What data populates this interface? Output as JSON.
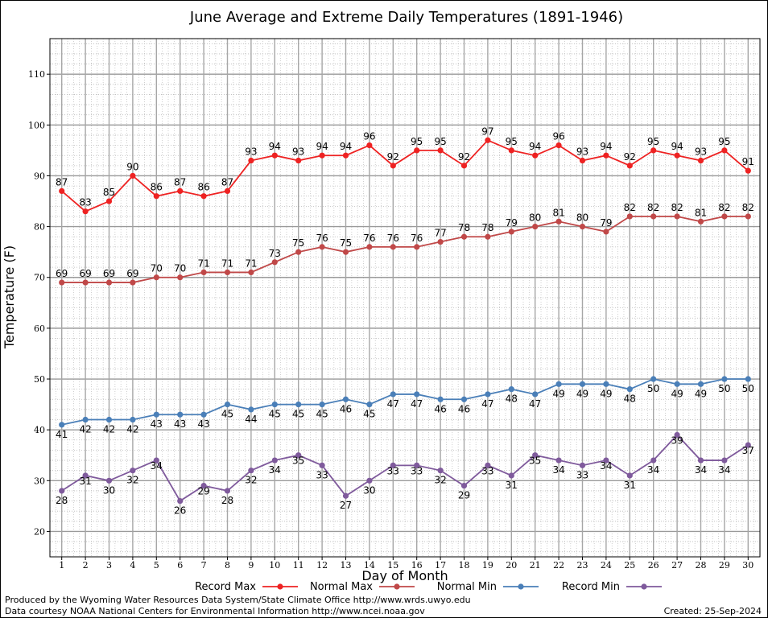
{
  "chart_data": {
    "type": "line",
    "title": "June Average and Extreme Daily Temperatures (1891-1946)",
    "xlabel": "Day of Month",
    "ylabel": "Temperature (F)",
    "x": [
      1,
      2,
      3,
      4,
      5,
      6,
      7,
      8,
      9,
      10,
      11,
      12,
      13,
      14,
      15,
      16,
      17,
      18,
      19,
      20,
      21,
      22,
      23,
      24,
      25,
      26,
      27,
      28,
      29,
      30
    ],
    "xlim": [
      0.5,
      30.5
    ],
    "ylim": [
      15,
      117
    ],
    "yticks": [
      20,
      30,
      40,
      50,
      60,
      70,
      80,
      90,
      100,
      110
    ],
    "grid": true,
    "legend_position": "bottom",
    "series": [
      {
        "name": "Record Max",
        "color": "#ee2222",
        "values": [
          87,
          83,
          85,
          90,
          86,
          87,
          86,
          87,
          93,
          94,
          93,
          94,
          94,
          96,
          92,
          95,
          95,
          92,
          97,
          95,
          94,
          96,
          93,
          94,
          92,
          95,
          94,
          93,
          95,
          91
        ]
      },
      {
        "name": "Normal Max",
        "color": "#c04848",
        "values": [
          69,
          69,
          69,
          69,
          70,
          70,
          71,
          71,
          71,
          73,
          75,
          76,
          75,
          76,
          76,
          76,
          77,
          78,
          78,
          79,
          80,
          81,
          80,
          79,
          82,
          82,
          82,
          81,
          82,
          82
        ]
      },
      {
        "name": "Normal Min",
        "color": "#4a7fb8",
        "values": [
          41,
          42,
          42,
          42,
          43,
          43,
          43,
          45,
          44,
          45,
          45,
          45,
          46,
          45,
          47,
          47,
          46,
          46,
          47,
          48,
          47,
          49,
          49,
          49,
          48,
          50,
          49,
          49,
          50,
          50
        ]
      },
      {
        "name": "Record Min",
        "color": "#7f5a9c",
        "values": [
          28,
          31,
          30,
          32,
          34,
          26,
          29,
          28,
          32,
          34,
          35,
          33,
          27,
          30,
          33,
          33,
          32,
          29,
          33,
          31,
          35,
          34,
          33,
          34,
          31,
          34,
          39,
          34,
          34,
          37
        ]
      }
    ]
  },
  "footer": {
    "line1": "Produced by the Wyoming Water Resources Data System/State Climate Office http://www.wrds.uwyo.edu",
    "line2": "Data courtesy NOAA National Centers for Environmental Information http://www.ncei.noaa.gov",
    "created": "Created:  25-Sep-2024"
  }
}
